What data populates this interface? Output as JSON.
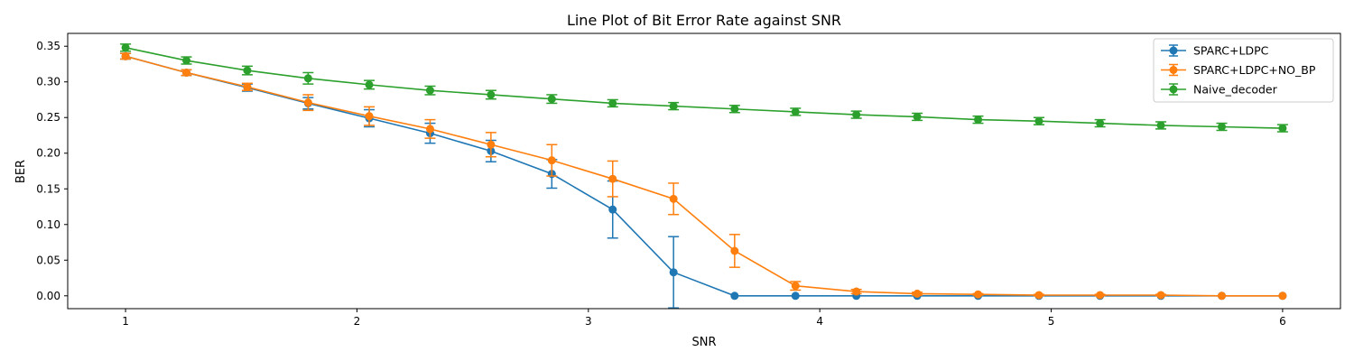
{
  "chart_data": {
    "type": "line",
    "title": "Line Plot of Bit Error Rate against SNR",
    "xlabel": "SNR",
    "ylabel": "BER",
    "xlim": [
      0.75,
      6.25
    ],
    "ylim": [
      -0.018,
      0.368
    ],
    "xticks": [
      1,
      2,
      3,
      4,
      5,
      6
    ],
    "xtick_labels": [
      "1",
      "2",
      "3",
      "4",
      "5",
      "6"
    ],
    "yticks": [
      0,
      0.05,
      0.1,
      0.15,
      0.2,
      0.25,
      0.3,
      0.35
    ],
    "ytick_labels": [
      "0.00",
      "0.05",
      "0.10",
      "0.15",
      "0.20",
      "0.25",
      "0.30",
      "0.35"
    ],
    "grid": false,
    "legend_position": "top-right",
    "x": [
      1.0,
      1.263,
      1.526,
      1.789,
      2.053,
      2.316,
      2.579,
      2.842,
      3.105,
      3.368,
      3.632,
      3.895,
      4.158,
      4.421,
      4.684,
      4.947,
      5.211,
      5.474,
      5.737,
      6.0
    ],
    "series": [
      {
        "name": "SPARC+LDPC",
        "color": "#1f77b4",
        "values": [
          0.336,
          0.313,
          0.292,
          0.27,
          0.249,
          0.228,
          0.203,
          0.171,
          0.121,
          0.033,
          0.0,
          0.0,
          0.0,
          0.0,
          0.0,
          0.0,
          0.0,
          0.0,
          0.0,
          0.0
        ],
        "errors": [
          0.004,
          0.004,
          0.005,
          0.008,
          0.012,
          0.014,
          0.015,
          0.02,
          0.04,
          0.05,
          0.0,
          0.0,
          0.0,
          0.0,
          0.0,
          0.0,
          0.0,
          0.0,
          0.0,
          0.0
        ]
      },
      {
        "name": "SPARC+LDPC+NO_BP",
        "color": "#ff7f0e",
        "values": [
          0.336,
          0.313,
          0.293,
          0.271,
          0.252,
          0.234,
          0.212,
          0.19,
          0.164,
          0.136,
          0.063,
          0.014,
          0.006,
          0.003,
          0.002,
          0.001,
          0.001,
          0.001,
          0.0,
          0.0
        ],
        "errors": [
          0.004,
          0.004,
          0.005,
          0.011,
          0.013,
          0.013,
          0.017,
          0.022,
          0.025,
          0.022,
          0.023,
          0.006,
          0.003,
          0.002,
          0.001,
          0.001,
          0.001,
          0.001,
          0.0,
          0.0
        ]
      },
      {
        "name": "Naive_decoder",
        "color": "#2ca02c",
        "values": [
          0.348,
          0.33,
          0.316,
          0.305,
          0.296,
          0.288,
          0.282,
          0.276,
          0.27,
          0.266,
          0.262,
          0.258,
          0.254,
          0.251,
          0.247,
          0.245,
          0.242,
          0.239,
          0.237,
          0.235
        ],
        "errors": [
          0.005,
          0.005,
          0.006,
          0.008,
          0.006,
          0.006,
          0.006,
          0.006,
          0.005,
          0.005,
          0.005,
          0.005,
          0.005,
          0.005,
          0.005,
          0.005,
          0.005,
          0.005,
          0.005,
          0.005
        ]
      }
    ]
  }
}
